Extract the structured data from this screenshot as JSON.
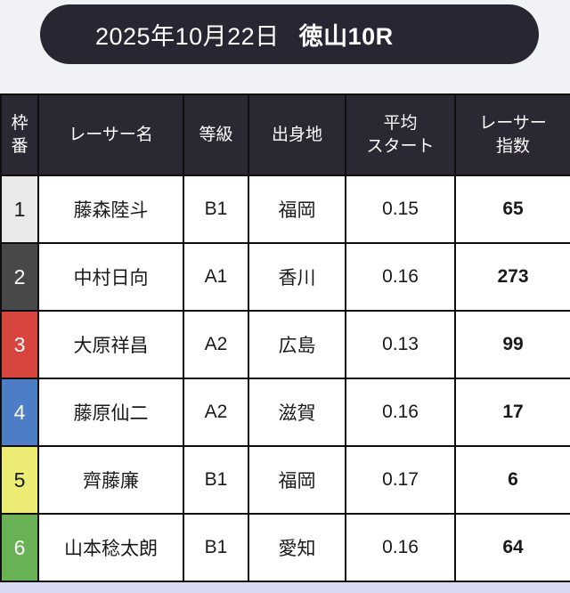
{
  "page": {
    "background": "#f1f2f5",
    "footer_strip_color": "#d9daf1"
  },
  "header": {
    "date": "2025年10月22日",
    "race": "徳山10R",
    "background": "#292633",
    "text_color": "#ffffff"
  },
  "table": {
    "header_background": "#2b2833",
    "columns": [
      {
        "key": "waku",
        "label": "枠\n番"
      },
      {
        "key": "name",
        "label": "レーサー名"
      },
      {
        "key": "grade",
        "label": "等級"
      },
      {
        "key": "origin",
        "label": "出身地"
      },
      {
        "key": "avg_start",
        "label": "平均\nスタート"
      },
      {
        "key": "index",
        "label": "レーサー\n指数"
      }
    ],
    "rows": [
      {
        "waku": "1",
        "waku_bg": "#e9e9e9",
        "waku_color": "#1a1a1a",
        "name": "藤森陸斗",
        "grade": "B1",
        "origin": "福岡",
        "avg_start": "0.15",
        "index": "65"
      },
      {
        "waku": "2",
        "waku_bg": "#484848",
        "waku_color": "#ffffff",
        "name": "中村日向",
        "grade": "A1",
        "origin": "香川",
        "avg_start": "0.16",
        "index": "273"
      },
      {
        "waku": "3",
        "waku_bg": "#d8453e",
        "waku_color": "#ffffff",
        "name": "大原祥昌",
        "grade": "A2",
        "origin": "広島",
        "avg_start": "0.13",
        "index": "99"
      },
      {
        "waku": "4",
        "waku_bg": "#4d7dc5",
        "waku_color": "#ffffff",
        "name": "藤原仙二",
        "grade": "A2",
        "origin": "滋賀",
        "avg_start": "0.16",
        "index": "17"
      },
      {
        "waku": "5",
        "waku_bg": "#ecec74",
        "waku_color": "#1a1a1a",
        "name": "齊藤廉",
        "grade": "B1",
        "origin": "福岡",
        "avg_start": "0.17",
        "index": "6"
      },
      {
        "waku": "6",
        "waku_bg": "#68b154",
        "waku_color": "#ffffff",
        "name": "山本稔太朗",
        "grade": "B1",
        "origin": "愛知",
        "avg_start": "0.16",
        "index": "64"
      }
    ]
  }
}
